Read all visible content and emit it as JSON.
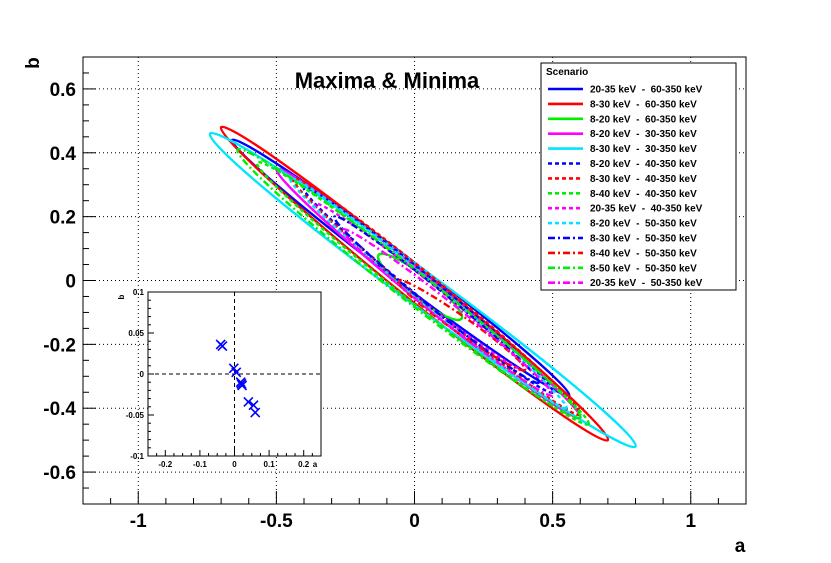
{
  "chart_data": [
    {
      "type": "contour",
      "title": "Maxima & Minima",
      "xlabel": "a",
      "ylabel": "b",
      "xlim": [
        -1.2,
        1.2
      ],
      "ylim": [
        -0.7,
        0.7
      ],
      "x_ticks": [
        "-1",
        "-0.5",
        "0",
        "0.5",
        "1"
      ],
      "x_tick_values": [
        -1,
        -0.5,
        0,
        0.5,
        1
      ],
      "y_ticks": [
        "0.6",
        "0.4",
        "0.2",
        "0",
        "-0.2",
        "-0.4",
        "-0.6"
      ],
      "y_tick_values": [
        0.6,
        0.4,
        0.2,
        0,
        -0.2,
        -0.4,
        -0.6
      ],
      "grid": true,
      "legend_title": "Scenario",
      "legend_position": "top-right",
      "series": [
        {
          "name": "20-35 keV  -  60-350 keV",
          "color": "#0000ff",
          "dash": "solid",
          "ellipse": {
            "center": [
              -0.05,
              0.04
            ],
            "endpoint": [
              0.56,
              -0.36
            ],
            "width": 0.045
          }
        },
        {
          "name": "8-30 keV  -  60-350 keV",
          "color": "#ff0000",
          "dash": "solid",
          "ellipse": {
            "center": [
              0.0,
              -0.01
            ],
            "endpoint": [
              0.7,
              -0.5
            ],
            "width": 0.055
          }
        },
        {
          "name": "8-20 keV  -  60-350 keV",
          "color": "#00ee00",
          "dash": "solid",
          "ellipse": {
            "center": [
              0.02,
              -0.02
            ],
            "endpoint": [
              0.17,
              -0.12
            ],
            "width": 0.04
          }
        },
        {
          "name": "8-20 keV  -  30-350 keV",
          "color": "#ff00ff",
          "dash": "solid",
          "ellipse": {
            "center": [
              0.05,
              -0.04
            ],
            "endpoint": [
              0.6,
              -0.43
            ],
            "width": 0.045
          }
        },
        {
          "name": "8-30 keV  -  30-350 keV",
          "color": "#00e5ff",
          "dash": "solid",
          "ellipse": {
            "center": [
              0.03,
              -0.03
            ],
            "endpoint": [
              0.8,
              -0.52
            ],
            "width": 0.062
          }
        },
        {
          "name": "8-20 keV  -  40-350 keV",
          "color": "#0000ff",
          "dash": "dashed",
          "ellipse": {
            "center": [
              0.05,
              -0.03
            ],
            "endpoint": [
              0.5,
              -0.35
            ],
            "width": 0.04
          }
        },
        {
          "name": "8-30 keV  -  40-350 keV",
          "color": "#ff0000",
          "dash": "dashed",
          "ellipse": {
            "center": [
              0.08,
              -0.05
            ],
            "endpoint": [
              0.6,
              -0.42
            ],
            "width": 0.045
          }
        },
        {
          "name": "8-40 keV  -  40-350 keV",
          "color": "#00ee00",
          "dash": "dashed",
          "ellipse": {
            "center": [
              0.03,
              -0.04
            ],
            "endpoint": [
              0.63,
              -0.45
            ],
            "width": 0.05
          }
        },
        {
          "name": "20-35 keV  -  40-350 keV",
          "color": "#ff00ff",
          "dash": "dashed",
          "ellipse": {
            "center": [
              0.02,
              -0.02
            ],
            "endpoint": [
              0.4,
              -0.28
            ],
            "width": 0.035
          }
        },
        {
          "name": "8-20 keV  -  50-350 keV",
          "color": "#00e5ff",
          "dash": "dashed",
          "ellipse": {
            "center": [
              0.05,
              -0.04
            ],
            "endpoint": [
              0.55,
              -0.4
            ],
            "width": 0.04
          }
        },
        {
          "name": "8-30 keV  -  50-350 keV",
          "color": "#0000ff",
          "dash": "dashdot",
          "ellipse": {
            "center": [
              0.08,
              -0.06
            ],
            "endpoint": [
              0.45,
              -0.32
            ],
            "width": 0.035
          }
        },
        {
          "name": "8-40 keV  -  50-350 keV",
          "color": "#ff0000",
          "dash": "dashdot",
          "ellipse": {
            "center": [
              0.17,
              -0.14
            ],
            "endpoint": [
              0.4,
              -0.28
            ],
            "width": 0.03
          }
        },
        {
          "name": "8-50 keV  -  50-350 keV",
          "color": "#00ee00",
          "dash": "dashdot",
          "ellipse": {
            "center": [
              -0.02,
              -0.01
            ],
            "endpoint": [
              0.6,
              -0.43
            ],
            "width": 0.055
          }
        },
        {
          "name": "20-35 keV  -  50-350 keV",
          "color": "#ff00ff",
          "dash": "dashdot",
          "ellipse": {
            "center": [
              0.12,
              -0.1
            ],
            "endpoint": [
              0.5,
              -0.36
            ],
            "width": 0.035
          }
        }
      ]
    },
    {
      "type": "scatter",
      "title": "",
      "xlabel": "a",
      "ylabel": "b",
      "xlim": [
        -0.25,
        0.25
      ],
      "ylim": [
        -0.1,
        0.1
      ],
      "x_ticks": [
        "-0.2",
        "-0.1",
        "0",
        "0.1",
        "0.2"
      ],
      "x_tick_values": [
        -0.2,
        -0.1,
        0,
        0.1,
        0.2
      ],
      "y_ticks": [
        "0.1",
        "0.05",
        "0",
        "-0.05",
        "-0.1"
      ],
      "y_tick_values": [
        0.1,
        0.05,
        0,
        -0.05,
        -0.1
      ],
      "marker": "x",
      "marker_color": "#0000ff",
      "points": [
        {
          "x": -0.04,
          "y": 0.036
        },
        {
          "x": -0.035,
          "y": 0.034
        },
        {
          "x": -0.002,
          "y": 0.007
        },
        {
          "x": 0.005,
          "y": 0.002
        },
        {
          "x": 0.018,
          "y": -0.01
        },
        {
          "x": 0.022,
          "y": -0.014
        },
        {
          "x": 0.02,
          "y": -0.012
        },
        {
          "x": 0.04,
          "y": -0.034
        },
        {
          "x": 0.055,
          "y": -0.038
        },
        {
          "x": 0.06,
          "y": -0.047
        }
      ]
    }
  ]
}
